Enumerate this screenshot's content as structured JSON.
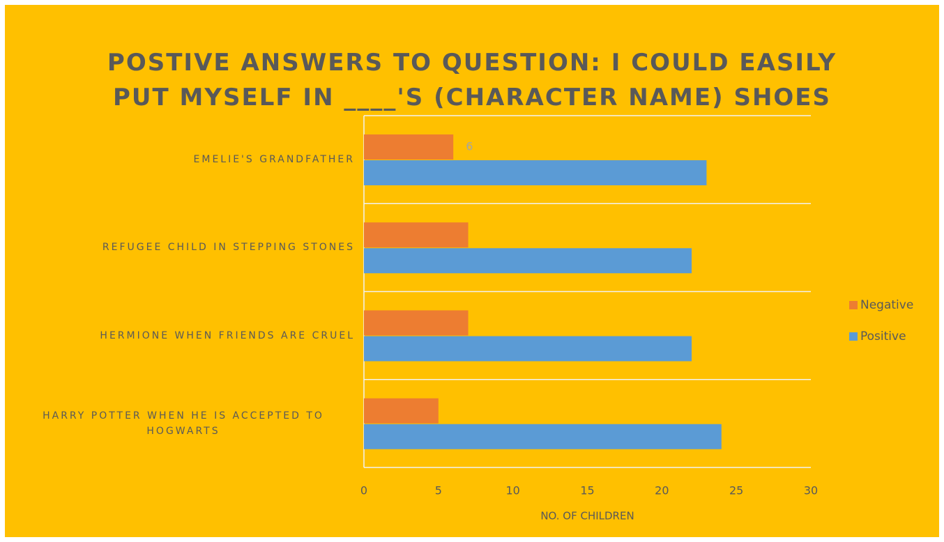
{
  "chart_data": {
    "type": "hbar",
    "title": "POSTIVE ANSWERS TO QUESTION: I COULD EASILY PUT MYSELF IN ____'S (CHARACTER NAME) SHOES",
    "categories": [
      "EMELIE'S GRANDFATHER",
      "REFUGEE CHILD IN STEPPING STONES",
      "HERMIONE WHEN FRIENDS ARE CRUEL",
      "HARRY POTTER WHEN HE IS ACCEPTED TO HOGWARTS"
    ],
    "series": [
      {
        "name": "Negative",
        "color": "#ED7D31",
        "values": [
          6,
          7,
          7,
          5
        ],
        "value_labels": [
          "6",
          null,
          null,
          null
        ]
      },
      {
        "name": "Positive",
        "color": "#5B9BD5",
        "values": [
          23,
          22,
          22,
          24
        ]
      }
    ],
    "xlabel": "NO. OF CHILDREN",
    "xlim": [
      0,
      30
    ],
    "xticks": [
      0,
      5,
      10,
      15,
      20,
      25,
      30
    ],
    "grid": true,
    "legend": "right"
  }
}
